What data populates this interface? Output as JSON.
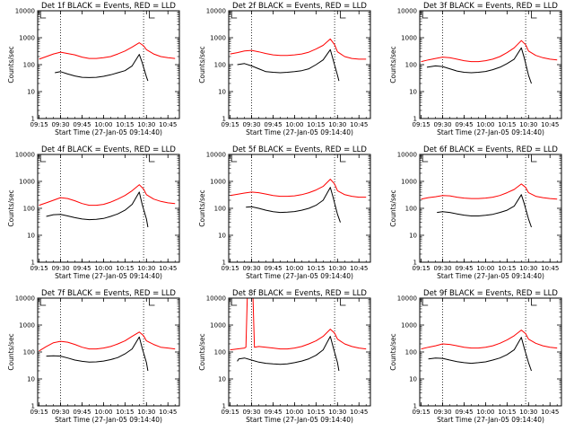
{
  "chart_data": [
    {
      "type": "line",
      "title": "Det 1f BLACK = Events, RED = LLD",
      "xlabel": "Start Time (27-Jan-05 09:14:40)",
      "ylabel": "Counts/sec",
      "yscale": "log",
      "ylim": [
        1,
        10000
      ],
      "x_ticks": [
        "09:15",
        "09:30",
        "09:45",
        "10:00",
        "10:15",
        "10:30",
        "10:45"
      ],
      "y_ticks": [
        "1",
        "10",
        "100",
        "1000",
        "10000"
      ],
      "series": [
        {
          "color": "#ff0000",
          "x": [
            "09:15",
            "09:20",
            "09:25",
            "09:30",
            "09:35",
            "09:40",
            "09:45",
            "09:50",
            "09:55",
            "10:00",
            "10:05",
            "10:10",
            "10:15",
            "10:20",
            "10:25",
            "10:28",
            "10:30",
            "10:35",
            "10:40",
            "10:45",
            "10:50"
          ],
          "values": [
            160,
            200,
            250,
            290,
            260,
            230,
            190,
            170,
            170,
            180,
            200,
            250,
            320,
            450,
            650,
            500,
            360,
            250,
            200,
            180,
            170
          ]
        },
        {
          "color": "#000000",
          "x": [
            "09:26",
            "09:30",
            "09:35",
            "09:40",
            "09:45",
            "09:50",
            "09:55",
            "10:00",
            "10:05",
            "10:10",
            "10:15",
            "10:20",
            "10:25",
            "10:27",
            "10:30",
            "10:31"
          ],
          "values": [
            50,
            55,
            45,
            38,
            34,
            33,
            34,
            37,
            42,
            50,
            60,
            90,
            240,
            120,
            35,
            25
          ]
        }
      ]
    },
    {
      "type": "line",
      "title": "Det 2f BLACK = Events, RED = LLD",
      "xlabel": "Start Time (27-Jan-05 09:14:40)",
      "ylabel": "Counts/sec",
      "yscale": "log",
      "ylim": [
        1,
        10000
      ],
      "x_ticks": [
        "09:15",
        "09:30",
        "09:45",
        "10:00",
        "10:15",
        "10:30",
        "10:45"
      ],
      "y_ticks": [
        "1",
        "10",
        "100",
        "1000",
        "10000"
      ],
      "series": [
        {
          "color": "#ff0000",
          "x": [
            "09:15",
            "09:20",
            "09:25",
            "09:30",
            "09:35",
            "09:40",
            "09:45",
            "09:50",
            "09:55",
            "10:00",
            "10:05",
            "10:10",
            "10:15",
            "10:20",
            "10:25",
            "10:28",
            "10:30",
            "10:35",
            "10:40",
            "10:45",
            "10:50"
          ],
          "values": [
            250,
            280,
            320,
            340,
            300,
            260,
            230,
            220,
            220,
            230,
            250,
            290,
            380,
            520,
            900,
            550,
            300,
            200,
            170,
            160,
            160
          ]
        },
        {
          "color": "#000000",
          "x": [
            "09:20",
            "09:25",
            "09:30",
            "09:35",
            "09:40",
            "09:45",
            "09:50",
            "09:55",
            "10:00",
            "10:05",
            "10:10",
            "10:15",
            "10:20",
            "10:25",
            "10:27",
            "10:30",
            "10:31"
          ],
          "values": [
            100,
            110,
            90,
            70,
            55,
            52,
            50,
            52,
            55,
            60,
            70,
            100,
            150,
            360,
            150,
            40,
            25
          ]
        }
      ]
    },
    {
      "type": "line",
      "title": "Det 3f BLACK = Events, RED = LLD",
      "xlabel": "Start Time (27-Jan-05 09:14:40)",
      "ylabel": "Counts/sec",
      "yscale": "log",
      "ylim": [
        1,
        10000
      ],
      "x_ticks": [
        "09:15",
        "09:30",
        "09:45",
        "10:00",
        "10:15",
        "10:30",
        "10:45"
      ],
      "y_ticks": [
        "1",
        "10",
        "100",
        "1000",
        "10000"
      ],
      "series": [
        {
          "color": "#ff0000",
          "x": [
            "09:15",
            "09:20",
            "09:25",
            "09:30",
            "09:35",
            "09:40",
            "09:45",
            "09:50",
            "09:55",
            "10:00",
            "10:05",
            "10:10",
            "10:15",
            "10:20",
            "10:25",
            "10:28",
            "10:30",
            "10:35",
            "10:40",
            "10:45",
            "10:50"
          ],
          "values": [
            130,
            150,
            170,
            190,
            180,
            160,
            140,
            130,
            130,
            140,
            160,
            200,
            280,
            420,
            780,
            550,
            320,
            220,
            180,
            160,
            150
          ]
        },
        {
          "color": "#000000",
          "x": [
            "09:19",
            "09:25",
            "09:30",
            "09:35",
            "09:40",
            "09:45",
            "09:50",
            "09:55",
            "10:00",
            "10:05",
            "10:10",
            "10:15",
            "10:20",
            "10:25",
            "10:27",
            "10:30",
            "10:32"
          ],
          "values": [
            80,
            90,
            85,
            70,
            58,
            52,
            50,
            52,
            56,
            65,
            80,
            110,
            160,
            420,
            180,
            40,
            20
          ]
        }
      ]
    },
    {
      "type": "line",
      "title": "Det 4f BLACK = Events, RED = LLD",
      "xlabel": "Start Time (27-Jan-05 09:14:40)",
      "ylabel": "Counts/sec",
      "yscale": "log",
      "ylim": [
        1,
        10000
      ],
      "x_ticks": [
        "09:15",
        "09:30",
        "09:45",
        "10:00",
        "10:15",
        "10:30",
        "10:45"
      ],
      "y_ticks": [
        "1",
        "10",
        "100",
        "1000",
        "10000"
      ],
      "series": [
        {
          "color": "#ff0000",
          "x": [
            "09:15",
            "09:20",
            "09:25",
            "09:30",
            "09:35",
            "09:40",
            "09:45",
            "09:50",
            "09:55",
            "10:00",
            "10:05",
            "10:10",
            "10:15",
            "10:20",
            "10:25",
            "10:28",
            "10:30",
            "10:35",
            "10:40",
            "10:45",
            "10:50"
          ],
          "values": [
            130,
            160,
            200,
            250,
            230,
            190,
            150,
            130,
            130,
            140,
            170,
            220,
            300,
            450,
            750,
            520,
            320,
            220,
            180,
            160,
            150
          ]
        },
        {
          "color": "#000000",
          "x": [
            "09:20",
            "09:25",
            "09:30",
            "09:35",
            "09:40",
            "09:45",
            "09:50",
            "09:55",
            "10:00",
            "10:05",
            "10:10",
            "10:15",
            "10:20",
            "10:25",
            "10:27",
            "10:30",
            "10:31"
          ],
          "values": [
            50,
            58,
            60,
            52,
            45,
            40,
            38,
            39,
            42,
            50,
            62,
            85,
            140,
            400,
            140,
            40,
            20
          ]
        }
      ]
    },
    {
      "type": "line",
      "title": "Det 5f BLACK = Events, RED = LLD",
      "xlabel": "Start Time (27-Jan-05 09:14:40)",
      "ylabel": "Counts/sec",
      "yscale": "log",
      "ylim": [
        1,
        10000
      ],
      "x_ticks": [
        "09:15",
        "09:30",
        "09:45",
        "10:00",
        "10:15",
        "10:30",
        "10:45"
      ],
      "y_ticks": [
        "1",
        "10",
        "100",
        "1000",
        "10000"
      ],
      "series": [
        {
          "color": "#ff0000",
          "x": [
            "09:15",
            "09:20",
            "09:25",
            "09:30",
            "09:35",
            "09:40",
            "09:45",
            "09:50",
            "09:55",
            "10:00",
            "10:05",
            "10:10",
            "10:15",
            "10:20",
            "10:25",
            "10:28",
            "10:30",
            "10:35",
            "10:40",
            "10:45",
            "10:50"
          ],
          "values": [
            300,
            330,
            370,
            400,
            380,
            340,
            300,
            280,
            280,
            290,
            320,
            380,
            480,
            650,
            1200,
            800,
            450,
            320,
            280,
            260,
            260
          ]
        },
        {
          "color": "#000000",
          "x": [
            "09:26",
            "09:30",
            "09:35",
            "09:40",
            "09:45",
            "09:50",
            "09:55",
            "10:00",
            "10:05",
            "10:10",
            "10:15",
            "10:20",
            "10:25",
            "10:27",
            "10:30",
            "10:32"
          ],
          "values": [
            110,
            115,
            100,
            85,
            75,
            70,
            72,
            76,
            85,
            100,
            130,
            200,
            600,
            250,
            60,
            30
          ]
        }
      ]
    },
    {
      "type": "line",
      "title": "Det 6f BLACK = Events, RED = LLD",
      "xlabel": "Start Time (27-Jan-05 09:14:40)",
      "ylabel": "Counts/sec",
      "yscale": "log",
      "ylim": [
        1,
        10000
      ],
      "x_ticks": [
        "09:15",
        "09:30",
        "09:45",
        "10:00",
        "10:15",
        "10:30",
        "10:45"
      ],
      "y_ticks": [
        "1",
        "10",
        "100",
        "1000",
        "10000"
      ],
      "series": [
        {
          "color": "#ff0000",
          "x": [
            "09:15",
            "09:20",
            "09:25",
            "09:30",
            "09:35",
            "09:40",
            "09:45",
            "09:50",
            "09:55",
            "10:00",
            "10:05",
            "10:10",
            "10:15",
            "10:20",
            "10:25",
            "10:28",
            "10:30",
            "10:35",
            "10:40",
            "10:45",
            "10:50"
          ],
          "values": [
            220,
            250,
            270,
            300,
            290,
            260,
            240,
            230,
            230,
            240,
            260,
            300,
            380,
            500,
            800,
            600,
            380,
            280,
            250,
            230,
            220
          ]
        },
        {
          "color": "#000000",
          "x": [
            "09:26",
            "09:30",
            "09:35",
            "09:40",
            "09:45",
            "09:50",
            "09:55",
            "10:00",
            "10:05",
            "10:10",
            "10:15",
            "10:20",
            "10:25",
            "10:27",
            "10:30",
            "10:32"
          ],
          "values": [
            70,
            75,
            70,
            62,
            56,
            52,
            52,
            55,
            60,
            70,
            85,
            120,
            320,
            150,
            40,
            20
          ]
        }
      ]
    },
    {
      "type": "line",
      "title": "Det 7f BLACK = Events, RED = LLD",
      "xlabel": "Start Time (27-Jan-05 09:14:40)",
      "ylabel": "Counts/sec",
      "yscale": "log",
      "ylim": [
        1,
        10000
      ],
      "x_ticks": [
        "09:15",
        "09:30",
        "09:45",
        "10:00",
        "10:15",
        "10:30",
        "10:45"
      ],
      "y_ticks": [
        "1",
        "10",
        "100",
        "1000",
        "10000"
      ],
      "series": [
        {
          "color": "#ff0000",
          "x": [
            "09:15",
            "09:20",
            "09:25",
            "09:30",
            "09:35",
            "09:40",
            "09:45",
            "09:50",
            "09:55",
            "10:00",
            "10:05",
            "10:10",
            "10:15",
            "10:20",
            "10:25",
            "10:28",
            "10:30",
            "10:35",
            "10:40",
            "10:45",
            "10:50"
          ],
          "values": [
            110,
            160,
            220,
            250,
            230,
            190,
            150,
            130,
            130,
            140,
            160,
            200,
            260,
            380,
            550,
            400,
            260,
            190,
            150,
            140,
            130
          ]
        },
        {
          "color": "#000000",
          "x": [
            "09:20",
            "09:25",
            "09:30",
            "09:35",
            "09:40",
            "09:45",
            "09:50",
            "09:55",
            "10:00",
            "10:05",
            "10:10",
            "10:15",
            "10:20",
            "10:25",
            "10:27",
            "10:30",
            "10:31"
          ],
          "values": [
            70,
            72,
            70,
            60,
            50,
            45,
            42,
            43,
            46,
            52,
            62,
            85,
            130,
            360,
            140,
            40,
            20
          ]
        }
      ]
    },
    {
      "type": "line",
      "title": "Det 8f BLACK = Events, RED = LLD",
      "xlabel": "Start Time (27-Jan-05 09:14:40)",
      "ylabel": "Counts/sec",
      "yscale": "log",
      "ylim": [
        1,
        10000
      ],
      "x_ticks": [
        "09:15",
        "09:30",
        "09:45",
        "10:00",
        "10:15",
        "10:30",
        "10:45"
      ],
      "y_ticks": [
        "1",
        "10",
        "100",
        "1000",
        "10000"
      ],
      "series": [
        {
          "color": "#ff0000",
          "x": [
            "09:15",
            "09:20",
            "09:25",
            "09:26",
            "09:27",
            "09:31",
            "09:32",
            "09:35",
            "09:40",
            "09:45",
            "09:50",
            "09:55",
            "10:00",
            "10:05",
            "10:10",
            "10:15",
            "10:20",
            "10:25",
            "10:28",
            "10:30",
            "10:35",
            "10:40",
            "10:45",
            "10:50"
          ],
          "values": [
            120,
            130,
            140,
            150,
            10000,
            10000,
            150,
            160,
            150,
            140,
            130,
            130,
            140,
            160,
            200,
            260,
            380,
            700,
            500,
            300,
            200,
            160,
            140,
            130
          ]
        },
        {
          "color": "#000000",
          "x": [
            "09:20",
            "09:21",
            "09:25",
            "09:30",
            "09:35",
            "09:40",
            "09:45",
            "09:50",
            "09:55",
            "10:00",
            "10:05",
            "10:10",
            "10:15",
            "10:20",
            "10:25",
            "10:27",
            "10:30",
            "10:31"
          ],
          "values": [
            45,
            55,
            60,
            50,
            42,
            38,
            36,
            35,
            36,
            40,
            46,
            56,
            75,
            120,
            380,
            150,
            40,
            20
          ]
        }
      ]
    },
    {
      "type": "line",
      "title": "Det 9f BLACK = Events, RED = LLD",
      "xlabel": "Start Time (27-Jan-05 09:14:40)",
      "ylabel": "Counts/sec",
      "yscale": "log",
      "ylim": [
        1,
        10000
      ],
      "x_ticks": [
        "09:15",
        "09:30",
        "09:45",
        "10:00",
        "10:15",
        "10:30",
        "10:45"
      ],
      "y_ticks": [
        "1",
        "10",
        "100",
        "1000",
        "10000"
      ],
      "series": [
        {
          "color": "#ff0000",
          "x": [
            "09:15",
            "09:20",
            "09:25",
            "09:30",
            "09:35",
            "09:40",
            "09:45",
            "09:50",
            "09:55",
            "10:00",
            "10:05",
            "10:10",
            "10:15",
            "10:20",
            "10:25",
            "10:28",
            "10:30",
            "10:35",
            "10:40",
            "10:45",
            "10:50"
          ],
          "values": [
            130,
            150,
            170,
            200,
            190,
            170,
            150,
            140,
            140,
            150,
            170,
            210,
            280,
            400,
            650,
            480,
            300,
            210,
            170,
            150,
            140
          ]
        },
        {
          "color": "#000000",
          "x": [
            "09:20",
            "09:25",
            "09:30",
            "09:35",
            "09:40",
            "09:45",
            "09:50",
            "09:55",
            "10:00",
            "10:05",
            "10:10",
            "10:15",
            "10:20",
            "10:25",
            "10:27",
            "10:30",
            "10:32"
          ],
          "values": [
            55,
            60,
            58,
            50,
            44,
            40,
            38,
            40,
            43,
            50,
            60,
            80,
            120,
            350,
            140,
            40,
            20
          ]
        }
      ]
    }
  ]
}
